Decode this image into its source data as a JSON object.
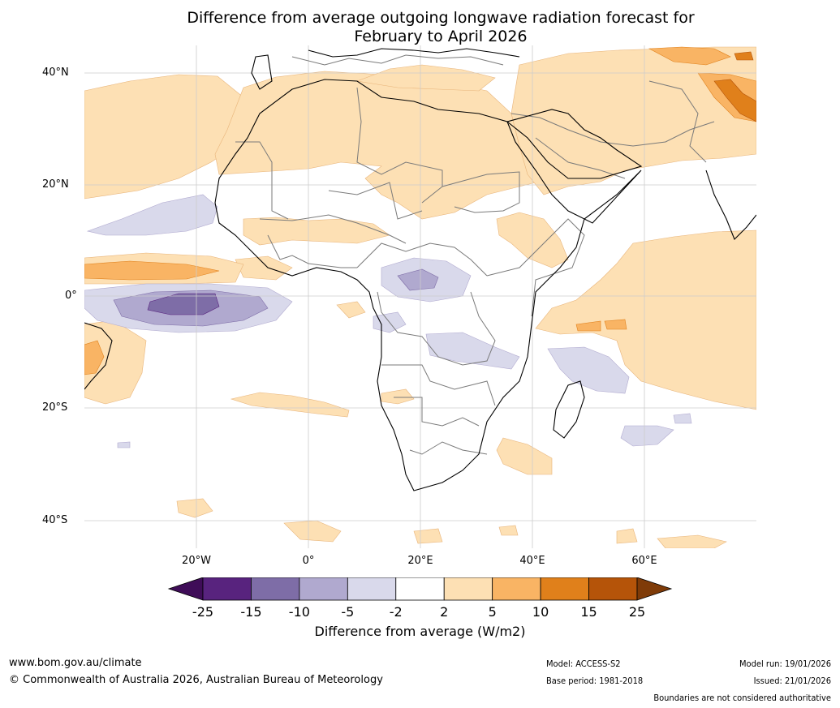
{
  "title": {
    "line1": "Difference from average outgoing longwave radiation forecast for",
    "line2": "February to April 2026"
  },
  "axes": {
    "lat_labels": [
      "40°N",
      "20°N",
      "0°",
      "20°S",
      "40°S"
    ],
    "lon_labels": [
      "20°W",
      "0°",
      "20°E",
      "40°E",
      "60°E"
    ]
  },
  "colorbar": {
    "labels": [
      "-25",
      "-15",
      "-10",
      "-5",
      "-2",
      "2",
      "5",
      "10",
      "15",
      "25"
    ],
    "colors": [
      "#3f0d58",
      "#58237e",
      "#7e6da7",
      "#b0a9cf",
      "#d9d9eb",
      "#ffffff",
      "#fde0b4",
      "#f9b464",
      "#e0801b",
      "#b55409",
      "#7f3b08"
    ],
    "title": "Difference from average (W/m2)"
  },
  "footer": {
    "website": "www.bom.gov.au/climate",
    "copyright": "© Commonwealth of Australia 2026, Australian Bureau of Meteorology",
    "model": "Model: ACCESS-S2",
    "base_period": "Base period: 1981-2018",
    "model_run": "Model run: 19/01/2026",
    "issued": "Issued: 21/01/2026",
    "disclaimer": "Boundaries are not considered authoritative"
  },
  "map_colors": {
    "ocean": "#ffffff",
    "light_orange": "#fde0b4",
    "mid_orange": "#f9b464",
    "dark_orange": "#e0801b",
    "light_purple": "#d9d9eb",
    "mid_purple": "#b0a9cf",
    "dark_purple": "#7e6da7",
    "coast": "#000000",
    "border": "#7a7a7a",
    "grid": "#cccccc"
  }
}
